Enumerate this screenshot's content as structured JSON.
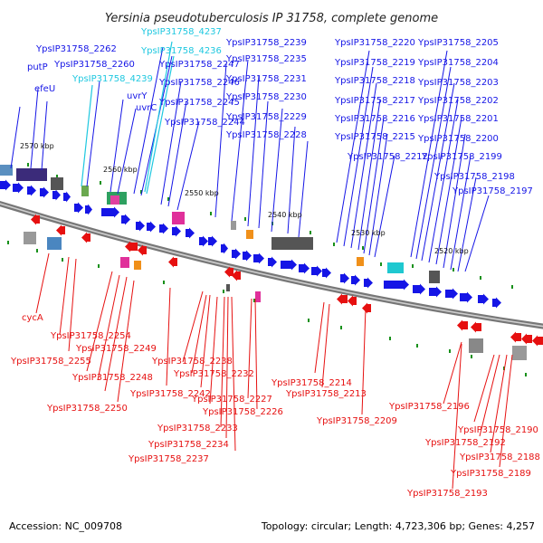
{
  "title": "Yersinia pseudotuberculosis IP 31758, complete genome",
  "footer": {
    "accession": "Accession: NC_009708",
    "summary": "Topology: circular; Length: 4,723,306 bp; Genes: 4,257"
  },
  "colors": {
    "forward": "#1515e6",
    "reverse": "#e61010",
    "rna": "#1fc8e0",
    "backbone": "#777777",
    "tick": "#17901a"
  },
  "scale_labels": [
    "2570 kbp",
    "2560 kbp",
    "2550 kbp",
    "2540 kbp",
    "2530 kbp",
    "2520 kbp"
  ],
  "top_labels": [
    {
      "text": "YpsIP31758_4237",
      "type": "rna"
    },
    {
      "text": "YpsIP31758_2262",
      "type": "gene"
    },
    {
      "text": "YpsIP31758_4236",
      "type": "rna"
    },
    {
      "text": "YpsIP31758_2239",
      "type": "gene"
    },
    {
      "text": "YpsIP31758_2220",
      "type": "gene"
    },
    {
      "text": "YpsIP31758_2205",
      "type": "gene"
    },
    {
      "text": "putP",
      "type": "gene"
    },
    {
      "text": "YpsIP31758_2260",
      "type": "gene"
    },
    {
      "text": "YpsIP31758_2247",
      "type": "gene"
    },
    {
      "text": "YpsIP31758_2235",
      "type": "gene"
    },
    {
      "text": "YpsIP31758_2219",
      "type": "gene"
    },
    {
      "text": "YpsIP31758_2204",
      "type": "gene"
    },
    {
      "text": "YpsIP31758_4239",
      "type": "rna"
    },
    {
      "text": "efeU",
      "type": "gene"
    },
    {
      "text": "YpsIP31758_2246",
      "type": "gene"
    },
    {
      "text": "YpsIP31758_2231",
      "type": "gene"
    },
    {
      "text": "YpsIP31758_2218",
      "type": "gene"
    },
    {
      "text": "YpsIP31758_2203",
      "type": "gene"
    },
    {
      "text": "uvrY",
      "type": "gene"
    },
    {
      "text": "YpsIP31758_2230",
      "type": "gene"
    },
    {
      "text": "YpsIP31758_2217",
      "type": "gene"
    },
    {
      "text": "YpsIP31758_2202",
      "type": "gene"
    },
    {
      "text": "uvrC",
      "type": "gene"
    },
    {
      "text": "YpsIP31758_2245",
      "type": "gene"
    },
    {
      "text": "YpsIP31758_2229",
      "type": "gene"
    },
    {
      "text": "YpsIP31758_2216",
      "type": "gene"
    },
    {
      "text": "YpsIP31758_2201",
      "type": "gene"
    },
    {
      "text": "YpsIP31758_2244",
      "type": "gene"
    },
    {
      "text": "YpsIP31758_2228",
      "type": "gene"
    },
    {
      "text": "YpsIP31758_2215",
      "type": "gene"
    },
    {
      "text": "YpsIP31758_2200",
      "type": "gene"
    },
    {
      "text": "YpsIP31758_2212",
      "type": "gene"
    },
    {
      "text": "YpsIP31758_2199",
      "type": "gene"
    },
    {
      "text": "YpsIP31758_2198",
      "type": "gene"
    },
    {
      "text": "YpsIP31758_2197",
      "type": "gene"
    }
  ],
  "bottom_labels": [
    "cycA",
    "YpsIP31758_2254",
    "YpsIP31758_2249",
    "YpsIP31758_2255",
    "YpsIP31758_2238",
    "YpsIP31758_2248",
    "YpsIP31758_2232",
    "YpsIP31758_2214",
    "YpsIP31758_2242",
    "YpsIP31758_2213",
    "YpsIP31758_2227",
    "YpsIP31758_2250",
    "YpsIP31758_2226",
    "YpsIP31758_2196",
    "YpsIP31758_2209",
    "YpsIP31758_2233",
    "YpsIP31758_2190",
    "YpsIP31758_2192",
    "YpsIP31758_2234",
    "YpsIP31758_2188",
    "YpsIP31758_2237",
    "YpsIP31758_2189",
    "YpsIP31758_2193"
  ]
}
